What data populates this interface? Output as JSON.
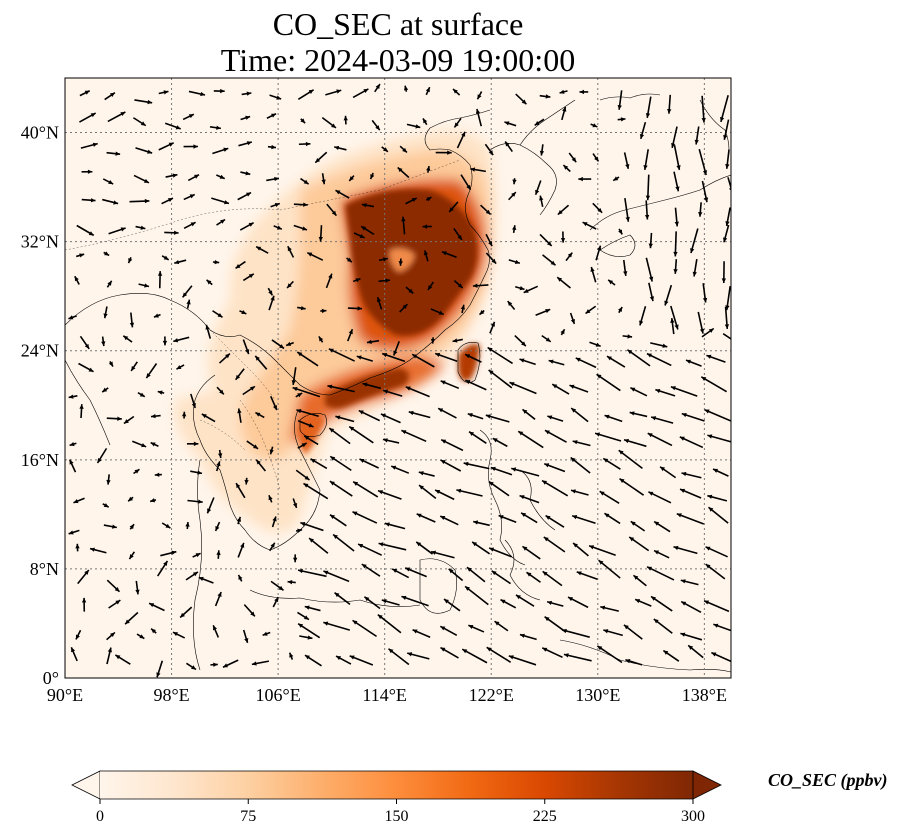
{
  "title": {
    "line1": "CO_SEC at surface",
    "line2": "Time: 2024-03-09 19:00:00"
  },
  "map": {
    "lon_range": [
      90,
      140
    ],
    "lat_range": [
      0,
      44
    ],
    "gridlines": true,
    "lon_ticks": [
      "90°E",
      "98°E",
      "106°E",
      "114°E",
      "122°E",
      "130°E",
      "138°E"
    ],
    "lat_ticks": [
      "0°",
      "8°N",
      "16°N",
      "24°N",
      "32°N",
      "40°N"
    ]
  },
  "colorbar": {
    "label": "CO_SEC (ppbv)",
    "ticks": [
      "0",
      "75",
      "150",
      "225",
      "300"
    ],
    "min": 0,
    "max": 300,
    "colormap": [
      "#fff5eb",
      "#fee6ce",
      "#fdd0a2",
      "#fdae6b",
      "#fd8d3c",
      "#f16913",
      "#d94801",
      "#a63603",
      "#7f2704"
    ],
    "extend": "both"
  }
}
